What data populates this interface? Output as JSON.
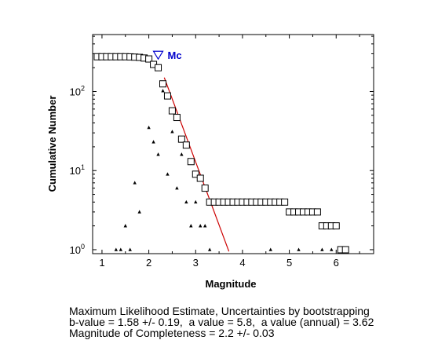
{
  "chart_data": {
    "type": "scatter",
    "xlabel": "Magnitude",
    "ylabel": "Cumulative Number",
    "xlim": [
      0.8,
      6.8
    ],
    "ylim_log10": [
      -0.05,
      2.72
    ],
    "yscale": "log",
    "grid": false,
    "x_ticks": [
      1,
      2,
      3,
      4,
      5,
      6
    ],
    "x_tick_labels": [
      "1",
      "2",
      "3",
      "4",
      "5",
      "6"
    ],
    "y_ticks": [
      1,
      10,
      100
    ],
    "y_tick_base": "10",
    "y_tick_exps": [
      "0",
      "1",
      "2"
    ],
    "colors": {
      "axes": "#000000",
      "fit_line": "#cc0000",
      "mc_marker": "#0000cc"
    },
    "cumulative": {
      "marker": "open-square",
      "x": [
        0.9,
        1.0,
        1.1,
        1.2,
        1.3,
        1.4,
        1.5,
        1.6,
        1.7,
        1.8,
        1.9,
        2.0,
        2.1,
        2.2,
        2.3,
        2.4,
        2.5,
        2.6,
        2.7,
        2.8,
        2.9,
        3.0,
        3.1,
        3.2,
        3.3,
        3.4,
        3.5,
        3.6,
        3.7,
        3.8,
        3.9,
        4.0,
        4.1,
        4.2,
        4.3,
        4.4,
        4.5,
        4.6,
        4.7,
        4.8,
        4.9,
        5.0,
        5.1,
        5.2,
        5.3,
        5.4,
        5.5,
        5.6,
        5.7,
        5.8,
        5.9,
        6.0,
        6.1,
        6.2
      ],
      "y": [
        275,
        275,
        275,
        275,
        275,
        275,
        275,
        274,
        272,
        270,
        265,
        258,
        220,
        200,
        125,
        88,
        57,
        47,
        25,
        21,
        13,
        9,
        8,
        6,
        4,
        4,
        4,
        4,
        4,
        4,
        4,
        4,
        4,
        4,
        4,
        4,
        4,
        4,
        4,
        4,
        4,
        3,
        3,
        3,
        3,
        3,
        3,
        3,
        2,
        2,
        2,
        2,
        1,
        1
      ]
    },
    "non_cumulative": {
      "marker": "small-triangle",
      "x": [
        1.3,
        1.4,
        1.5,
        1.6,
        1.7,
        1.8,
        2.0,
        2.1,
        2.2,
        2.3,
        2.4,
        2.5,
        2.6,
        2.7,
        2.8,
        2.9,
        3.0,
        3.1,
        3.2,
        3.3,
        4.6,
        5.2,
        5.7,
        5.9
      ],
      "y": [
        1,
        1,
        2,
        1,
        7,
        3,
        35,
        23,
        16,
        102,
        9,
        31,
        6,
        16,
        4,
        2,
        4,
        2,
        2,
        1,
        1,
        1,
        1,
        1
      ]
    },
    "fit_line": {
      "x": [
        2.33,
        3.71
      ],
      "y": [
        150,
        0.95
      ]
    },
    "mc_marker": {
      "x": 2.2,
      "y": 288,
      "label": "Mc"
    }
  },
  "caption": {
    "line1": "Maximum Likelihood Estimate, Uncertainties by bootstrapping",
    "line2": "b-value = 1.58 +/- 0.19,  a value = 5.8,  a value (annual) = 3.62",
    "line3": "Magnitude of Completeness = 2.2 +/- 0.03"
  }
}
